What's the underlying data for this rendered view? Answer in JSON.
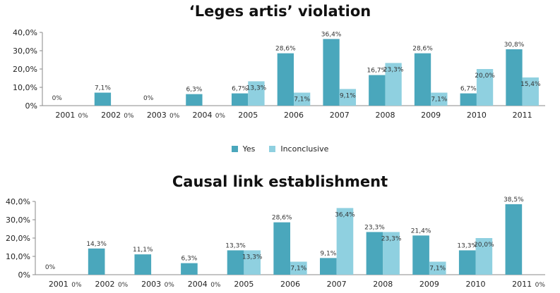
{
  "chart_data": [
    {
      "type": "bar",
      "title": "‘Leges artis’ violation",
      "categories": [
        "2001",
        "2002",
        "2003",
        "2004",
        "2005",
        "2006",
        "2007",
        "2008",
        "2009",
        "2010",
        "2011"
      ],
      "series": [
        {
          "name": "Yes",
          "color": "#4aa7bc",
          "values": [
            0,
            7.1,
            0,
            6.3,
            6.7,
            28.6,
            36.4,
            16.7,
            28.6,
            6.7,
            30.8
          ],
          "labels": [
            "0%",
            "7,1%",
            "0%",
            "6,3%",
            "6,7%",
            "28,6%",
            "36,4%",
            "16,7%",
            "28,6%",
            "6,7%",
            "30,8%"
          ]
        },
        {
          "name": "Inconclusive",
          "color": "#8fd0e0",
          "values": [
            0,
            0,
            0,
            0,
            13.3,
            7.1,
            9.1,
            23.3,
            7.1,
            20.0,
            15.4
          ],
          "labels": [
            "0%",
            "0%",
            "0%",
            "0%",
            "13,3%",
            "7,1%",
            "9,1%",
            "23,3%",
            "7,1%",
            "20,0%",
            "15,4%"
          ]
        }
      ],
      "yticks": [
        "0%",
        "10,0%",
        "20,0%",
        "30,0%",
        "40,0%"
      ],
      "ylim": [
        0,
        40
      ],
      "xlabel": "",
      "ylabel": "",
      "legend": "bottom-center",
      "grid": false
    },
    {
      "type": "bar",
      "title": "Causal link establishment",
      "categories": [
        "2001",
        "2002",
        "2003",
        "2004",
        "2005",
        "2006",
        "2007",
        "2008",
        "2009",
        "2010",
        "2011"
      ],
      "series": [
        {
          "name": "Yes",
          "color": "#4aa7bc",
          "values": [
            0,
            14.3,
            11.1,
            6.3,
            13.3,
            28.6,
            9.1,
            23.3,
            21.4,
            13.3,
            38.5
          ],
          "labels": [
            "0%",
            "14,3%",
            "11,1%",
            "6,3%",
            "13,3%",
            "28,6%",
            "9,1%",
            "23,3%",
            "21,4%",
            "13,3%",
            "38,5%"
          ]
        },
        {
          "name": "Inconclusive",
          "color": "#8fd0e0",
          "values": [
            0,
            0,
            0,
            0,
            13.3,
            7.1,
            36.4,
            23.3,
            7.1,
            20.0,
            0
          ],
          "labels": [
            "0%",
            "0%",
            "0%",
            "0%",
            "13,3%",
            "7,1%",
            "36,4%",
            "23,3%",
            "7,1%",
            "20,0%",
            "0%"
          ]
        }
      ],
      "yticks": [
        "0%",
        "10,0%",
        "20,0%",
        "30,0%",
        "40,0%"
      ],
      "ylim": [
        0,
        40
      ],
      "xlabel": "",
      "ylabel": "",
      "grid": false
    }
  ],
  "legend": {
    "items": [
      {
        "name": "Yes",
        "color": "#4aa7bc"
      },
      {
        "name": "Inconclusive",
        "color": "#8fd0e0"
      }
    ]
  }
}
